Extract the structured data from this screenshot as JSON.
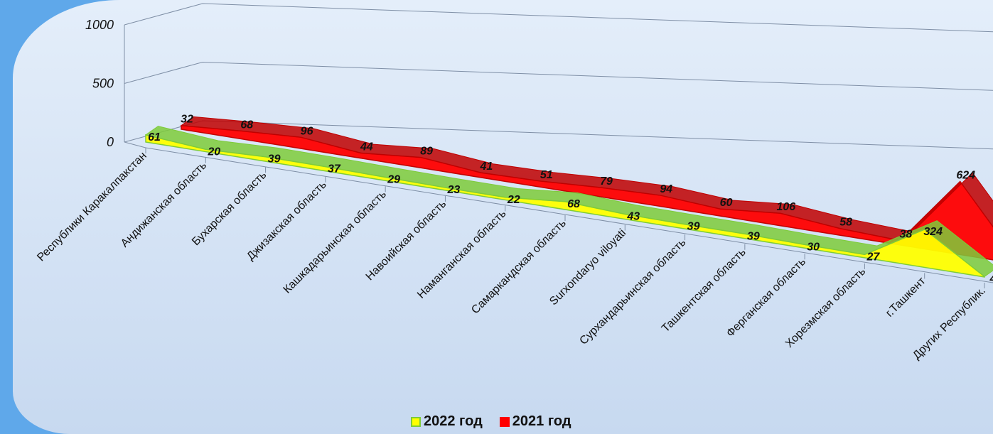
{
  "chart_data": {
    "type": "area",
    "subtype": "3d-line",
    "categories": [
      "Республики Каракалпакстан",
      "Андижанская область",
      "Бухарская область",
      "Джизакская область",
      "Кашкадарьинская область",
      "Навоийская область",
      "Наманганская область",
      "Самаркандская область",
      "Surxondaryo viloyati",
      "Сурхандарьинская область",
      "Ташкентская область",
      "Ферганская область",
      "Хорезмская область",
      "г.Ташкент",
      "Других Республик."
    ],
    "series": [
      {
        "name": "2022 год",
        "color": "#ffff00",
        "edge": "#7ecb3a",
        "values": [
          61,
          20,
          39,
          37,
          29,
          23,
          22,
          68,
          43,
          39,
          39,
          30,
          27,
          324,
          4
        ]
      },
      {
        "name": "2021 год",
        "color": "#ff0000",
        "edge": "#c00000",
        "values": [
          32,
          68,
          96,
          44,
          89,
          41,
          51,
          79,
          94,
          60,
          106,
          58,
          38,
          624,
          2
        ]
      }
    ],
    "yticks": [
      "0",
      "500",
      "1000"
    ],
    "ylim": [
      0,
      1000
    ],
    "legend_position": "bottom",
    "grid": true
  }
}
